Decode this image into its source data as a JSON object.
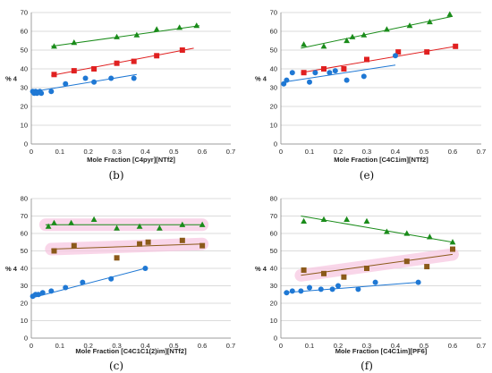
{
  "colors": {
    "green": "#1a8c1a",
    "red": "#e02020",
    "blue": "#1f78d4",
    "brown": "#8b5a1a",
    "darkred": "#c0392b",
    "grid": "#cfcfcf",
    "pink": "#f7c6e0"
  },
  "chart_data": [
    {
      "id": "b",
      "caption": "(b)",
      "type": "scatter",
      "xlabel": "Mole Fraction [C4pyr][NTf2]",
      "ylabel": "% 4",
      "xlim": [
        0,
        0.7
      ],
      "ylim": [
        0,
        70
      ],
      "xticks": [
        "0",
        "0.1",
        "0.2",
        "0.3",
        "0.4",
        "0.5",
        "0.6",
        "0.7"
      ],
      "yticks": [
        "0",
        "10",
        "20",
        "30",
        "40",
        "50",
        "60",
        "70"
      ],
      "grid": true,
      "series": [
        {
          "marker": "triangle",
          "color": "#1a8c1a",
          "x": [
            0.08,
            0.15,
            0.3,
            0.37,
            0.44,
            0.52,
            0.58
          ],
          "y": [
            52,
            54,
            57,
            58,
            61,
            62,
            63
          ],
          "fit": [
            [
              0.07,
              52
            ],
            [
              0.59,
              63
            ]
          ]
        },
        {
          "marker": "square",
          "color": "#e02020",
          "x": [
            0.08,
            0.15,
            0.22,
            0.3,
            0.36,
            0.44,
            0.53
          ],
          "y": [
            37,
            39,
            40,
            43,
            44,
            47,
            50
          ],
          "fit": [
            [
              0.07,
              36.5
            ],
            [
              0.57,
              51
            ]
          ]
        },
        {
          "marker": "circle",
          "color": "#1f78d4",
          "x": [
            0.005,
            0.01,
            0.015,
            0.02,
            0.03,
            0.035,
            0.07,
            0.12,
            0.19,
            0.22,
            0.28,
            0.36
          ],
          "y": [
            28,
            27,
            28,
            27,
            28,
            27,
            28,
            32,
            35,
            33,
            35,
            35
          ],
          "fit": [
            [
              0.01,
              28
            ],
            [
              0.37,
              37
            ]
          ]
        }
      ]
    },
    {
      "id": "e",
      "caption": "(e)",
      "type": "scatter",
      "xlabel": "Mole Fraction [C4C1im][NTf2]",
      "ylabel": "% 4",
      "xlim": [
        0,
        0.7
      ],
      "ylim": [
        0,
        70
      ],
      "xticks": [
        "0",
        "0.1",
        "0.2",
        "0.3",
        "0.4",
        "0.5",
        "0.6",
        "0.7"
      ],
      "yticks": [
        "0",
        "10",
        "20",
        "30",
        "40",
        "50",
        "60",
        "70"
      ],
      "grid": true,
      "series": [
        {
          "marker": "triangle",
          "color": "#1a8c1a",
          "x": [
            0.08,
            0.15,
            0.23,
            0.25,
            0.29,
            0.37,
            0.45,
            0.52,
            0.59
          ],
          "y": [
            53,
            52,
            55,
            57,
            58,
            61,
            63,
            65,
            69
          ],
          "fit": [
            [
              0.07,
              51
            ],
            [
              0.6,
              68
            ]
          ]
        },
        {
          "marker": "square",
          "color": "#e02020",
          "x": [
            0.08,
            0.15,
            0.22,
            0.3,
            0.41,
            0.51,
            0.61
          ],
          "y": [
            38,
            40,
            40,
            45,
            49,
            49,
            52
          ],
          "fit": [
            [
              0.07,
              38
            ],
            [
              0.61,
              52
            ]
          ]
        },
        {
          "marker": "circle",
          "color": "#1f78d4",
          "x": [
            0.01,
            0.02,
            0.04,
            0.1,
            0.12,
            0.17,
            0.19,
            0.23,
            0.29,
            0.4
          ],
          "y": [
            32,
            34,
            38,
            33,
            38,
            38,
            39,
            34,
            36,
            47
          ],
          "fit": [
            [
              0.01,
              33
            ],
            [
              0.4,
              42
            ]
          ]
        }
      ]
    },
    {
      "id": "c",
      "caption": "(c)",
      "type": "scatter",
      "xlabel": "Mole Fraction [C4C1C1(2)im][NTf2]",
      "ylabel": "% 4",
      "xlim": [
        0,
        0.7
      ],
      "ylim": [
        0,
        80
      ],
      "xticks": [
        "0",
        "0.1",
        "0.2",
        "0.3",
        "0.4",
        "0.5",
        "0.6",
        "0.7"
      ],
      "yticks": [
        "0",
        "10",
        "20",
        "30",
        "40",
        "50",
        "60",
        "70",
        "80"
      ],
      "grid": true,
      "series": [
        {
          "marker": "triangle",
          "color": "#1a8c1a",
          "x": [
            0.06,
            0.08,
            0.14,
            0.22,
            0.3,
            0.38,
            0.45,
            0.53,
            0.6
          ],
          "y": [
            64,
            66,
            66,
            68,
            63,
            64,
            63,
            65,
            65
          ],
          "fit": [
            [
              0.05,
              65
            ],
            [
              0.6,
              65
            ]
          ],
          "highlight": "pink"
        },
        {
          "marker": "square",
          "color": "#8b5a1a",
          "x": [
            0.08,
            0.15,
            0.3,
            0.38,
            0.41,
            0.53,
            0.6
          ],
          "y": [
            50,
            53,
            46,
            54,
            55,
            56,
            53
          ],
          "fit": [
            [
              0.07,
              51
            ],
            [
              0.6,
              54
            ]
          ],
          "highlight": "pink"
        },
        {
          "marker": "circle",
          "color": "#1f78d4",
          "x": [
            0.005,
            0.015,
            0.025,
            0.04,
            0.07,
            0.12,
            0.18,
            0.28,
            0.4
          ],
          "y": [
            24,
            25,
            25,
            26,
            27,
            29,
            32,
            34,
            40
          ],
          "fit": [
            [
              0.0,
              23
            ],
            [
              0.4,
              40
            ]
          ]
        }
      ]
    },
    {
      "id": "f",
      "caption": "(f)",
      "type": "scatter",
      "xlabel": "Mole Fraction [C4C1im][PF6]",
      "ylabel": "% 4",
      "xlim": [
        0,
        0.7
      ],
      "ylim": [
        0,
        80
      ],
      "xticks": [
        "0",
        "0.1",
        "0.2",
        "0.3",
        "0.4",
        "0.5",
        "0.6",
        "0.7"
      ],
      "yticks": [
        "0",
        "10",
        "20",
        "30",
        "40",
        "50",
        "60",
        "70",
        "80"
      ],
      "grid": true,
      "series": [
        {
          "marker": "triangle",
          "color": "#1a8c1a",
          "x": [
            0.08,
            0.15,
            0.23,
            0.3,
            0.37,
            0.44,
            0.52,
            0.6
          ],
          "y": [
            67,
            68,
            68,
            67,
            61,
            60,
            58,
            55
          ],
          "fit": [
            [
              0.07,
              70
            ],
            [
              0.6,
              55
            ]
          ]
        },
        {
          "marker": "square",
          "color": "#8b5a1a",
          "x": [
            0.08,
            0.15,
            0.22,
            0.3,
            0.44,
            0.51,
            0.6
          ],
          "y": [
            39,
            37,
            35,
            40,
            44,
            41,
            51
          ],
          "fit": [
            [
              0.07,
              36
            ],
            [
              0.6,
              48
            ]
          ],
          "highlight": "pink"
        },
        {
          "marker": "circle",
          "color": "#1f78d4",
          "x": [
            0.02,
            0.04,
            0.07,
            0.1,
            0.14,
            0.18,
            0.2,
            0.27,
            0.33,
            0.48
          ],
          "y": [
            26,
            27,
            27,
            29,
            28,
            28,
            30,
            28,
            32,
            32
          ],
          "fit": [
            [
              0.01,
              26
            ],
            [
              0.48,
              32
            ]
          ]
        }
      ]
    }
  ]
}
